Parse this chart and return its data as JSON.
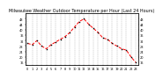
{
  "title": "Milwaukee Weather Outdoor Temperature per Hour (Last 24 Hours)",
  "hours": [
    0,
    1,
    2,
    3,
    4,
    5,
    6,
    7,
    8,
    9,
    10,
    11,
    12,
    13,
    14,
    15,
    16,
    17,
    18,
    19,
    20,
    21,
    22,
    23
  ],
  "temps": [
    30,
    29,
    32,
    28,
    26,
    29,
    31,
    33,
    35,
    38,
    42,
    46,
    48,
    44,
    41,
    38,
    34,
    33,
    30,
    28,
    26,
    25,
    20,
    16
  ],
  "line_color": "#ff0000",
  "marker_color": "#000000",
  "bg_color": "#ffffff",
  "grid_color": "#888888",
  "ylim": [
    14,
    52
  ],
  "ytick_vals": [
    16,
    20,
    24,
    28,
    32,
    36,
    40,
    44,
    48
  ],
  "title_fontsize": 3.5,
  "tick_fontsize": 2.5
}
